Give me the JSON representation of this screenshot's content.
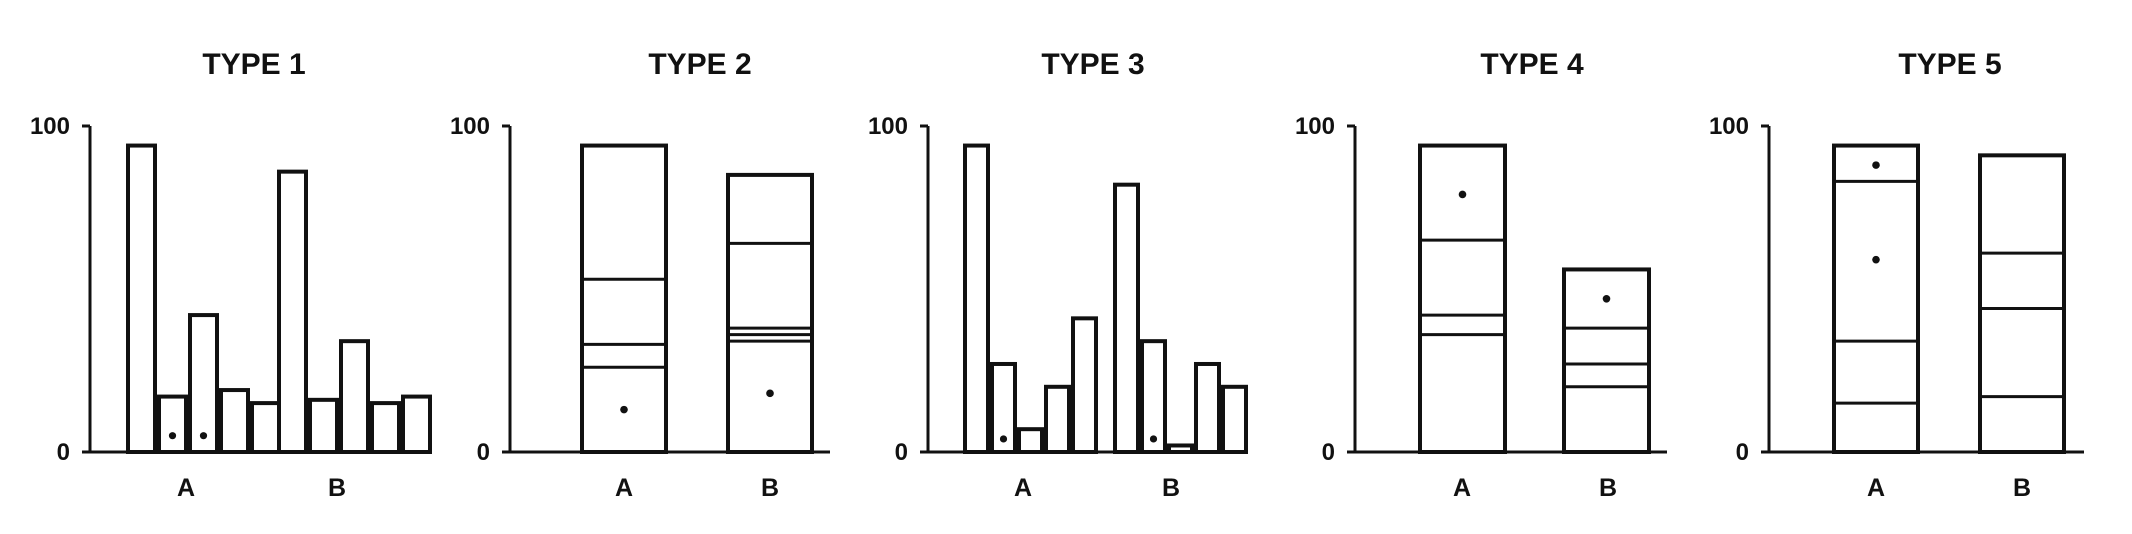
{
  "chart_data": [
    {
      "type": "bar",
      "title": "TYPE 1",
      "layout": "grouped",
      "ylim": [
        0,
        100
      ],
      "yticks": [
        "0",
        "100"
      ],
      "categories": [
        "A",
        "B"
      ],
      "groups": [
        {
          "label": "A",
          "bars": [
            {
              "value": 94
            },
            {
              "value": 17,
              "dot": 5
            },
            {
              "value": 42,
              "dot": 5
            },
            {
              "value": 19
            },
            {
              "value": 15
            }
          ]
        },
        {
          "label": "B",
          "bars": [
            {
              "value": 86
            },
            {
              "value": 16
            },
            {
              "value": 34
            },
            {
              "value": 15
            },
            {
              "value": 17
            }
          ]
        }
      ]
    },
    {
      "type": "bar",
      "title": "TYPE 2",
      "layout": "stacked",
      "ylim": [
        0,
        100
      ],
      "yticks": [
        "0",
        "100"
      ],
      "categories": [
        "A",
        "B"
      ],
      "groups": [
        {
          "label": "A",
          "total": 94,
          "dividers": [
            26,
            33,
            53
          ],
          "dots": [
            13
          ]
        },
        {
          "label": "B",
          "total": 85,
          "dividers": [
            34,
            36,
            38,
            64
          ],
          "dots": [
            18
          ]
        }
      ]
    },
    {
      "type": "bar",
      "title": "TYPE 3",
      "layout": "grouped",
      "ylim": [
        0,
        100
      ],
      "yticks": [
        "0",
        "100"
      ],
      "categories": [
        "A",
        "B"
      ],
      "groups": [
        {
          "label": "A",
          "bars": [
            {
              "value": 94
            },
            {
              "value": 27,
              "dot": 4
            },
            {
              "value": 7
            },
            {
              "value": 20
            },
            {
              "value": 41
            }
          ]
        },
        {
          "label": "B",
          "bars": [
            {
              "value": 82
            },
            {
              "value": 34,
              "dot": 4
            },
            {
              "value": 2
            },
            {
              "value": 27
            },
            {
              "value": 20
            }
          ]
        }
      ]
    },
    {
      "type": "bar",
      "title": "TYPE 4",
      "layout": "stacked",
      "ylim": [
        0,
        100
      ],
      "yticks": [
        "0",
        "100"
      ],
      "categories": [
        "A",
        "B"
      ],
      "groups": [
        {
          "label": "A",
          "total": 94,
          "dividers": [
            36,
            42,
            65
          ],
          "dots": [
            79
          ]
        },
        {
          "label": "B",
          "total": 56,
          "dividers": [
            20,
            27,
            38
          ],
          "dots": [
            47
          ]
        }
      ]
    },
    {
      "type": "bar",
      "title": "TYPE 5",
      "layout": "stacked",
      "ylim": [
        0,
        100
      ],
      "yticks": [
        "0",
        "100"
      ],
      "categories": [
        "A",
        "B"
      ],
      "groups": [
        {
          "label": "A",
          "total": 94,
          "dividers": [
            15,
            34,
            83
          ],
          "dots": [
            59,
            88
          ]
        },
        {
          "label": "B",
          "total": 91,
          "dividers": [
            17,
            44,
            61
          ],
          "dots": []
        }
      ]
    }
  ]
}
